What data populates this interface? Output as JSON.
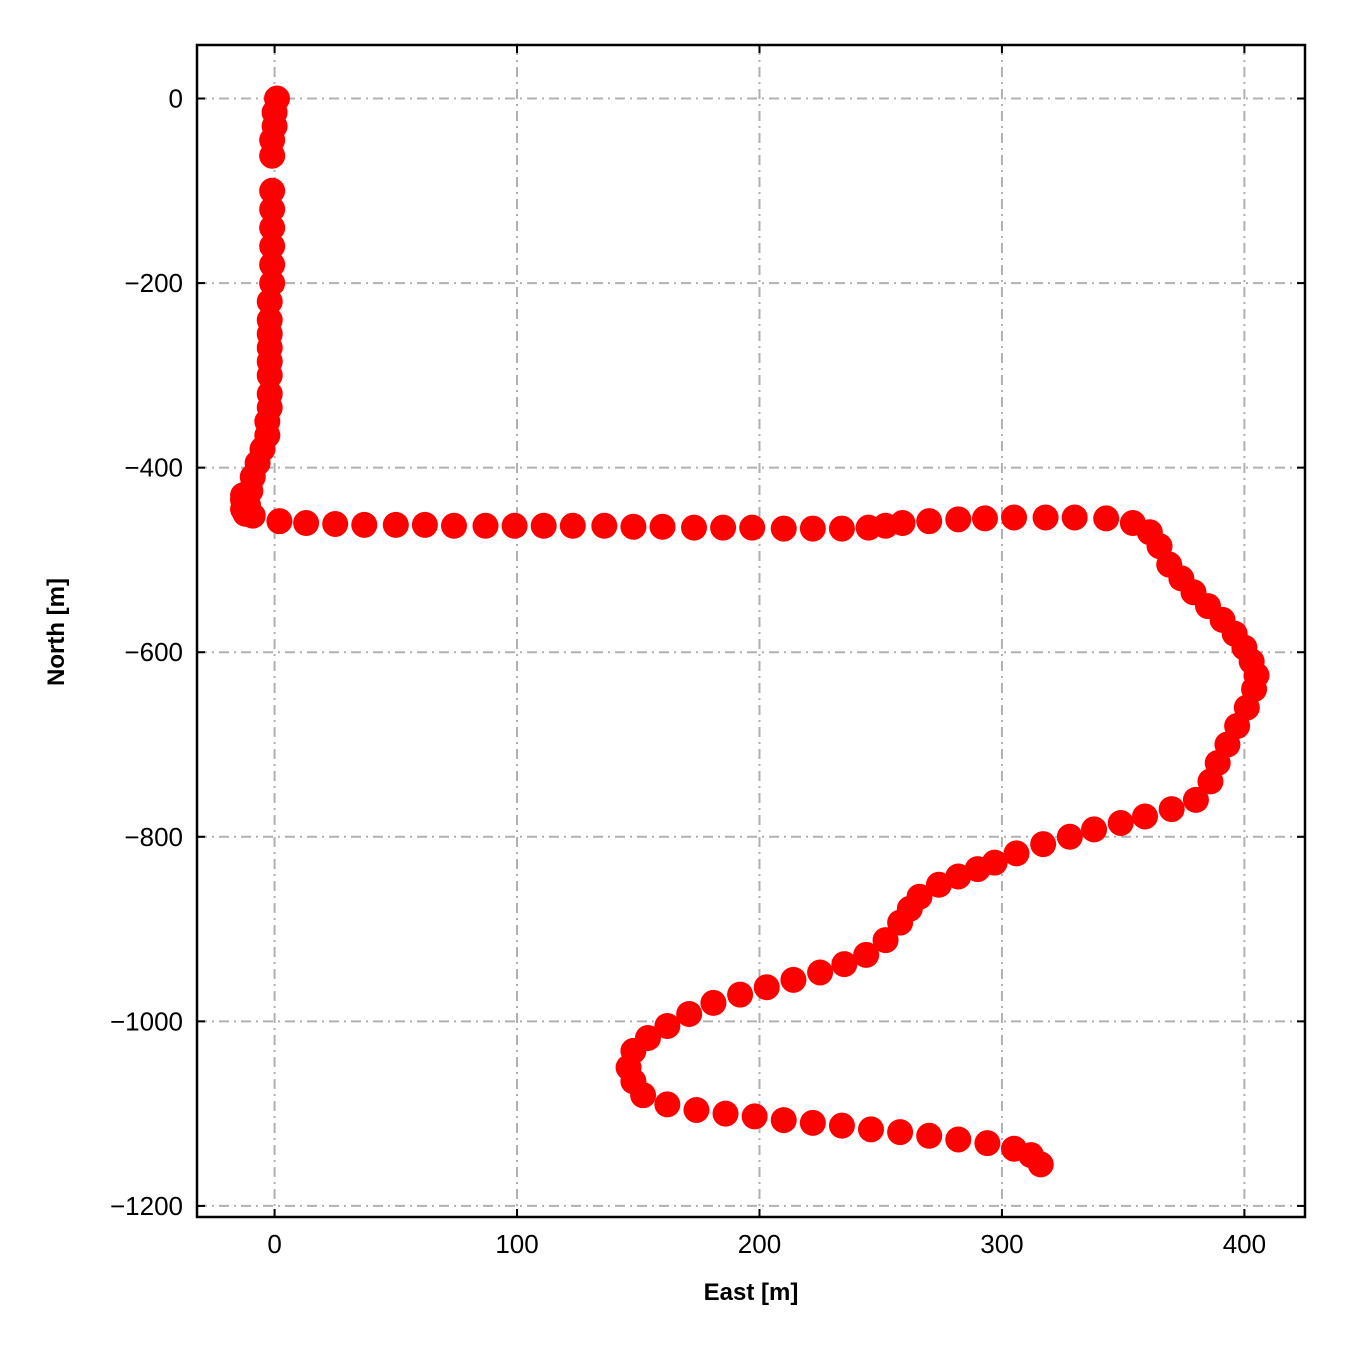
{
  "chart_data": {
    "type": "scatter",
    "xlabel": "East [m]",
    "ylabel": "North [m]",
    "xlim": [
      -32,
      425
    ],
    "ylim": [
      -1212,
      58
    ],
    "xticks": [
      0,
      100,
      200,
      300,
      400
    ],
    "yticks": [
      0,
      -200,
      -400,
      -600,
      -800,
      -1000,
      -1200
    ],
    "xtick_labels": [
      "0",
      "100",
      "200",
      "300",
      "400"
    ],
    "ytick_labels": [
      "0",
      "−200",
      "−400",
      "−600",
      "−800",
      "−1000",
      "−1200"
    ],
    "grid": true,
    "marker_color": "#ff0000",
    "series": [
      {
        "x": [
          1,
          0,
          0,
          -1,
          -1,
          -1,
          -1,
          -1,
          -1,
          -1,
          -1,
          -2,
          -2,
          -2,
          -2,
          -2,
          -2,
          -2,
          -2,
          -3,
          -3,
          -5,
          -7,
          -9,
          -10,
          -11,
          -12,
          -13,
          -13,
          -13,
          -9,
          2,
          13,
          25,
          37,
          50,
          62,
          74,
          87,
          99,
          111,
          123,
          136,
          148,
          160,
          173,
          185,
          197,
          210,
          222,
          234,
          245,
          252,
          259,
          270,
          282,
          293,
          305,
          318,
          330,
          343,
          354,
          361,
          365,
          369,
          374,
          379,
          385,
          391,
          396,
          400,
          403,
          405,
          404,
          401,
          397,
          393,
          389,
          386,
          380,
          370,
          359,
          349,
          338,
          328,
          317,
          306,
          297,
          290,
          282,
          274,
          266,
          262,
          258,
          252,
          244,
          235,
          225,
          214,
          203,
          192,
          181,
          171,
          162,
          154,
          148,
          146,
          148,
          152,
          162,
          174,
          186,
          198,
          210,
          222,
          234,
          246,
          258,
          270,
          282,
          294,
          305,
          312,
          316
        ],
        "y": [
          0,
          -15,
          -30,
          -45,
          -62,
          -100,
          -120,
          -140,
          -160,
          -180,
          -200,
          -220,
          -240,
          -255,
          -270,
          -285,
          -300,
          -320,
          -335,
          -350,
          -365,
          -380,
          -395,
          -410,
          -425,
          -440,
          -450,
          -445,
          -435,
          -430,
          -452,
          -458,
          -460,
          -461,
          -462,
          -462,
          -462,
          -463,
          -463,
          -463,
          -463,
          -463,
          -463,
          -464,
          -464,
          -465,
          -465,
          -465,
          -466,
          -466,
          -466,
          -465,
          -463,
          -460,
          -458,
          -456,
          -455,
          -454,
          -454,
          -454,
          -455,
          -460,
          -470,
          -485,
          -505,
          -520,
          -535,
          -550,
          -565,
          -580,
          -595,
          -610,
          -625,
          -640,
          -660,
          -680,
          -700,
          -720,
          -740,
          -760,
          -770,
          -778,
          -785,
          -792,
          -800,
          -808,
          -818,
          -828,
          -835,
          -843,
          -852,
          -865,
          -878,
          -893,
          -912,
          -928,
          -938,
          -947,
          -955,
          -963,
          -971,
          -980,
          -992,
          -1005,
          -1018,
          -1032,
          -1050,
          -1065,
          -1080,
          -1090,
          -1096,
          -1100,
          -1103,
          -1107,
          -1110,
          -1113,
          -1117,
          -1120,
          -1124,
          -1128,
          -1132,
          -1138,
          -1145,
          -1155
        ]
      }
    ]
  }
}
